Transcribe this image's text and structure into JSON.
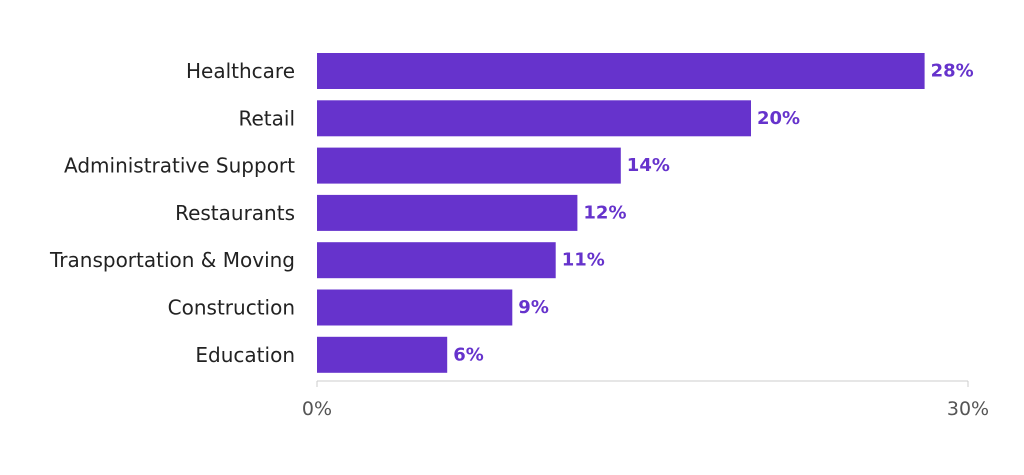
{
  "chart_data": {
    "type": "bar",
    "orientation": "horizontal",
    "categories": [
      "Healthcare",
      "Retail",
      "Administrative Support",
      "Restaurants",
      "Transportation & Moving",
      "Construction",
      "Education"
    ],
    "values": [
      28,
      20,
      14,
      12,
      11,
      9,
      6
    ],
    "value_labels": [
      "28%",
      "20%",
      "14%",
      "12%",
      "11%",
      "9%",
      "6%"
    ],
    "xlim": [
      0,
      30
    ],
    "x_ticks": [
      {
        "value": 0,
        "label": "0%"
      },
      {
        "value": 30,
        "label": "30%"
      }
    ],
    "title": "",
    "xlabel": "",
    "ylabel": "",
    "grid": false,
    "legend": "none",
    "bar_color": "#6633cc",
    "label_color": "#6633cc",
    "axis_color": "#cccccc"
  }
}
